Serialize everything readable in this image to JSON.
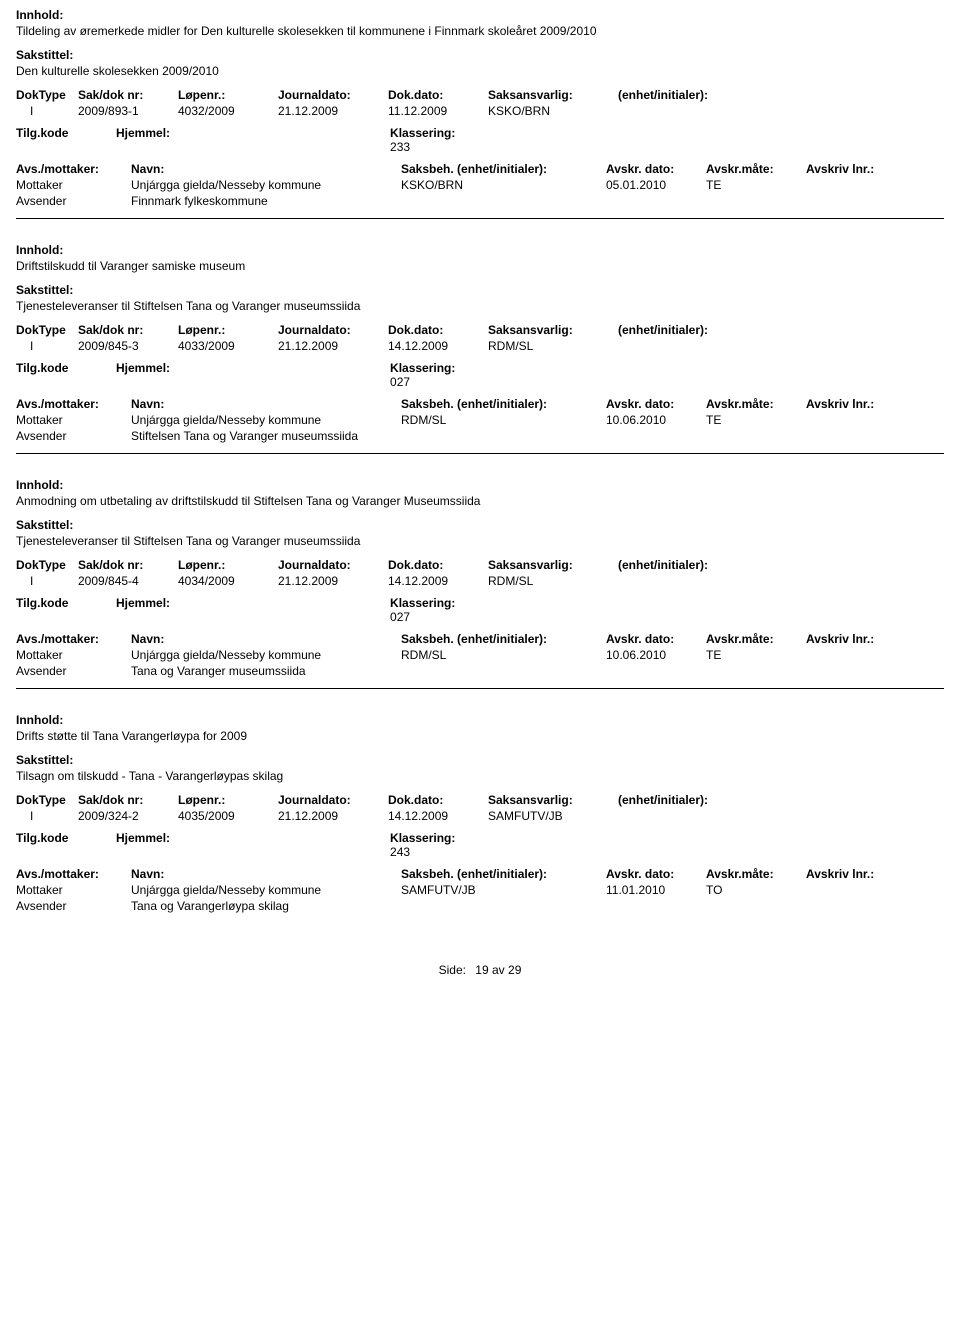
{
  "labels": {
    "innhold": "Innhold:",
    "sakstittel": "Sakstittel:",
    "doktype": "DokType",
    "sakdoknr": "Sak/dok nr:",
    "lopenr": "Løpenr.:",
    "journaldato": "Journaldato:",
    "dokdato": "Dok.dato:",
    "saksansvarlig": "Saksansvarlig:",
    "enhetinitialer": "(enhet/initialer):",
    "tilgkode": "Tilg.kode",
    "hjemmel": "Hjemmel:",
    "klassering": "Klassering:",
    "avsmottaker": "Avs./mottaker:",
    "navn": "Navn:",
    "saksbeh": "Saksbeh.",
    "saksbeh_enhet": "(enhet/initialer):",
    "avskrdato": "Avskr. dato:",
    "avskrmate": "Avskr.måte:",
    "avskrivlnr": "Avskriv lnr.:",
    "mottaker": "Mottaker",
    "avsender": "Avsender"
  },
  "records": [
    {
      "innhold": "Tildeling av øremerkede midler for Den kulturelle skolesekken til kommunene i Finnmark skoleåret 2009/2010",
      "sakstittel": "Den kulturelle skolesekken 2009/2010",
      "doktype": "I",
      "sakdoknr": "2009/893-1",
      "lopenr": "4032/2009",
      "journaldato": "21.12.2009",
      "dokdato": "11.12.2009",
      "saksansvarlig": "KSKO/BRN",
      "klassering": "233",
      "participants": [
        {
          "role": "Mottaker",
          "navn": "Unjárgga gielda/Nesseby kommune",
          "saksbeh": "KSKO/BRN",
          "avskrdato": "05.01.2010",
          "avskrmate": "TE"
        },
        {
          "role": "Avsender",
          "navn": "Finnmark fylkeskommune",
          "saksbeh": "",
          "avskrdato": "",
          "avskrmate": ""
        }
      ]
    },
    {
      "innhold": "Driftstilskudd til Varanger samiske museum",
      "sakstittel": "Tjenesteleveranser til Stiftelsen Tana og Varanger museumssiida",
      "doktype": "I",
      "sakdoknr": "2009/845-3",
      "lopenr": "4033/2009",
      "journaldato": "21.12.2009",
      "dokdato": "14.12.2009",
      "saksansvarlig": "RDM/SL",
      "klassering": "027",
      "participants": [
        {
          "role": "Mottaker",
          "navn": "Unjárgga gielda/Nesseby kommune",
          "saksbeh": "RDM/SL",
          "avskrdato": "10.06.2010",
          "avskrmate": "TE"
        },
        {
          "role": "Avsender",
          "navn": "Stiftelsen Tana og Varanger museumssiida",
          "saksbeh": "",
          "avskrdato": "",
          "avskrmate": ""
        }
      ]
    },
    {
      "innhold": "Anmodning om utbetaling av driftstilskudd til Stiftelsen Tana og Varanger Museumssiida",
      "sakstittel": "Tjenesteleveranser til Stiftelsen Tana og Varanger museumssiida",
      "doktype": "I",
      "sakdoknr": "2009/845-4",
      "lopenr": "4034/2009",
      "journaldato": "21.12.2009",
      "dokdato": "14.12.2009",
      "saksansvarlig": "RDM/SL",
      "klassering": "027",
      "participants": [
        {
          "role": "Mottaker",
          "navn": "Unjárgga gielda/Nesseby kommune",
          "saksbeh": "RDM/SL",
          "avskrdato": "10.06.2010",
          "avskrmate": "TE"
        },
        {
          "role": "Avsender",
          "navn": "Tana og Varanger museumssiida",
          "saksbeh": "",
          "avskrdato": "",
          "avskrmate": ""
        }
      ]
    },
    {
      "innhold": "Drifts støtte til Tana Varangerløypa for 2009",
      "sakstittel": "Tilsagn om tilskudd - Tana - Varangerløypas skilag",
      "doktype": "I",
      "sakdoknr": "2009/324-2",
      "lopenr": "4035/2009",
      "journaldato": "21.12.2009",
      "dokdato": "14.12.2009",
      "saksansvarlig": "SAMFUTV/JB",
      "klassering": "243",
      "participants": [
        {
          "role": "Mottaker",
          "navn": "Unjárgga gielda/Nesseby kommune",
          "saksbeh": "SAMFUTV/JB",
          "avskrdato": "11.01.2010",
          "avskrmate": "TO"
        },
        {
          "role": "Avsender",
          "navn": "Tana og Varangerløypa skilag",
          "saksbeh": "",
          "avskrdato": "",
          "avskrmate": ""
        }
      ]
    }
  ],
  "footer": {
    "side_label": "Side:",
    "page_current": "19",
    "page_sep": "av",
    "page_total": "29"
  }
}
